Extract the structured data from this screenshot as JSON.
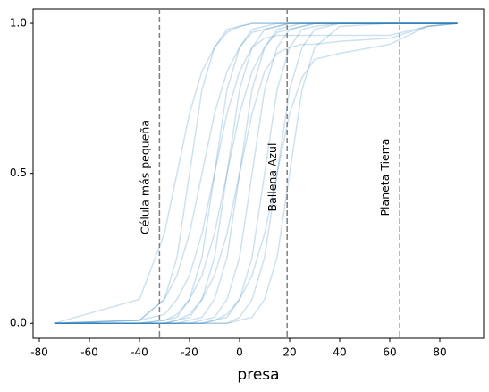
{
  "chart_data": {
    "type": "line",
    "x_label": "presa",
    "color": "#1f77b4",
    "alpha": 0.22,
    "x": [
      -74,
      -40,
      -30,
      -25,
      -20,
      -15,
      -10,
      -5,
      0,
      5,
      10,
      15,
      20,
      25,
      30,
      40,
      60,
      75,
      87
    ],
    "series": [
      {
        "values": [
          0,
          0.01,
          0.08,
          0.22,
          0.5,
          0.78,
          0.92,
          0.98,
          0.99,
          1,
          1,
          1,
          1,
          1,
          1,
          1,
          1,
          1,
          1
        ]
      },
      {
        "values": [
          0,
          0.01,
          0.08,
          0.16,
          0.3,
          0.5,
          0.7,
          0.84,
          0.92,
          0.97,
          0.98,
          0.99,
          1,
          1,
          1,
          1,
          1,
          1,
          1
        ]
      },
      {
        "values": [
          0,
          0,
          0.01,
          0.02,
          0.08,
          0.22,
          0.5,
          0.78,
          0.92,
          0.98,
          0.99,
          1,
          1,
          1,
          1,
          1,
          1,
          1,
          1
        ]
      },
      {
        "values": [
          0,
          0,
          0,
          0.01,
          0.02,
          0.08,
          0.22,
          0.5,
          0.78,
          0.92,
          0.98,
          0.99,
          1,
          1,
          1,
          1,
          1,
          1,
          1
        ]
      },
      {
        "values": [
          0,
          0,
          0.01,
          0.03,
          0.08,
          0.16,
          0.3,
          0.5,
          0.7,
          0.84,
          0.92,
          0.97,
          0.98,
          0.99,
          1,
          1,
          1,
          1,
          1
        ]
      },
      {
        "values": [
          0,
          0,
          0,
          0,
          0.01,
          0.02,
          0.08,
          0.22,
          0.5,
          0.78,
          0.92,
          0.98,
          0.99,
          1,
          1,
          1,
          1,
          1,
          1
        ]
      },
      {
        "values": [
          0,
          0,
          0,
          0.01,
          0.03,
          0.08,
          0.16,
          0.3,
          0.5,
          0.7,
          0.84,
          0.9,
          0.92,
          0.93,
          0.93,
          0.94,
          0.95,
          0.99,
          1
        ]
      },
      {
        "values": [
          0,
          0,
          0,
          0,
          0,
          0.01,
          0.02,
          0.08,
          0.22,
          0.5,
          0.78,
          0.92,
          0.98,
          0.99,
          1,
          1,
          1,
          1,
          1
        ]
      },
      {
        "values": [
          0,
          0,
          0,
          0,
          0,
          0,
          0.01,
          0.02,
          0.08,
          0.22,
          0.5,
          0.78,
          0.92,
          0.98,
          0.99,
          1,
          1,
          1,
          1
        ]
      },
      {
        "values": [
          0,
          0,
          0,
          0,
          0,
          0,
          0,
          0,
          0.02,
          0.08,
          0.22,
          0.5,
          0.78,
          0.92,
          0.98,
          1,
          1,
          1,
          1
        ]
      },
      {
        "values": [
          0,
          0,
          0,
          0,
          0,
          0,
          0.01,
          0.03,
          0.08,
          0.16,
          0.3,
          0.5,
          0.7,
          0.82,
          0.88,
          0.9,
          0.93,
          0.99,
          1
        ]
      },
      {
        "values": [
          0,
          0,
          0,
          0,
          0,
          0,
          0,
          0,
          0.01,
          0.02,
          0.08,
          0.22,
          0.5,
          0.78,
          0.92,
          0.99,
          1,
          1,
          1
        ]
      },
      {
        "values": [
          0,
          0.08,
          0.3,
          0.5,
          0.7,
          0.84,
          0.92,
          0.97,
          0.99,
          1,
          1,
          1,
          1,
          1,
          1,
          1,
          1,
          1,
          1
        ]
      },
      {
        "values": [
          0,
          0.01,
          0.03,
          0.08,
          0.16,
          0.3,
          0.5,
          0.7,
          0.84,
          0.92,
          0.95,
          0.96,
          0.96,
          0.96,
          0.96,
          0.96,
          0.96,
          0.99,
          1
        ]
      }
    ],
    "vlines": [
      {
        "x": -32,
        "label": "Célula más pequeña"
      },
      {
        "x": 19,
        "label": "Ballena Azul"
      },
      {
        "x": 64,
        "label": "Planeta Tierra"
      }
    ],
    "xlim": [
      -82.5,
      97.5
    ],
    "ylim": [
      -0.05,
      1.048
    ],
    "xticks": [
      -80,
      -60,
      -40,
      -20,
      0,
      20,
      40,
      60,
      80
    ],
    "yticks": [
      {
        "value": 0,
        "label": "0.0"
      },
      {
        "value": 0.5,
        "label": "0.5"
      },
      {
        "value": 1,
        "label": "1.0"
      }
    ]
  }
}
